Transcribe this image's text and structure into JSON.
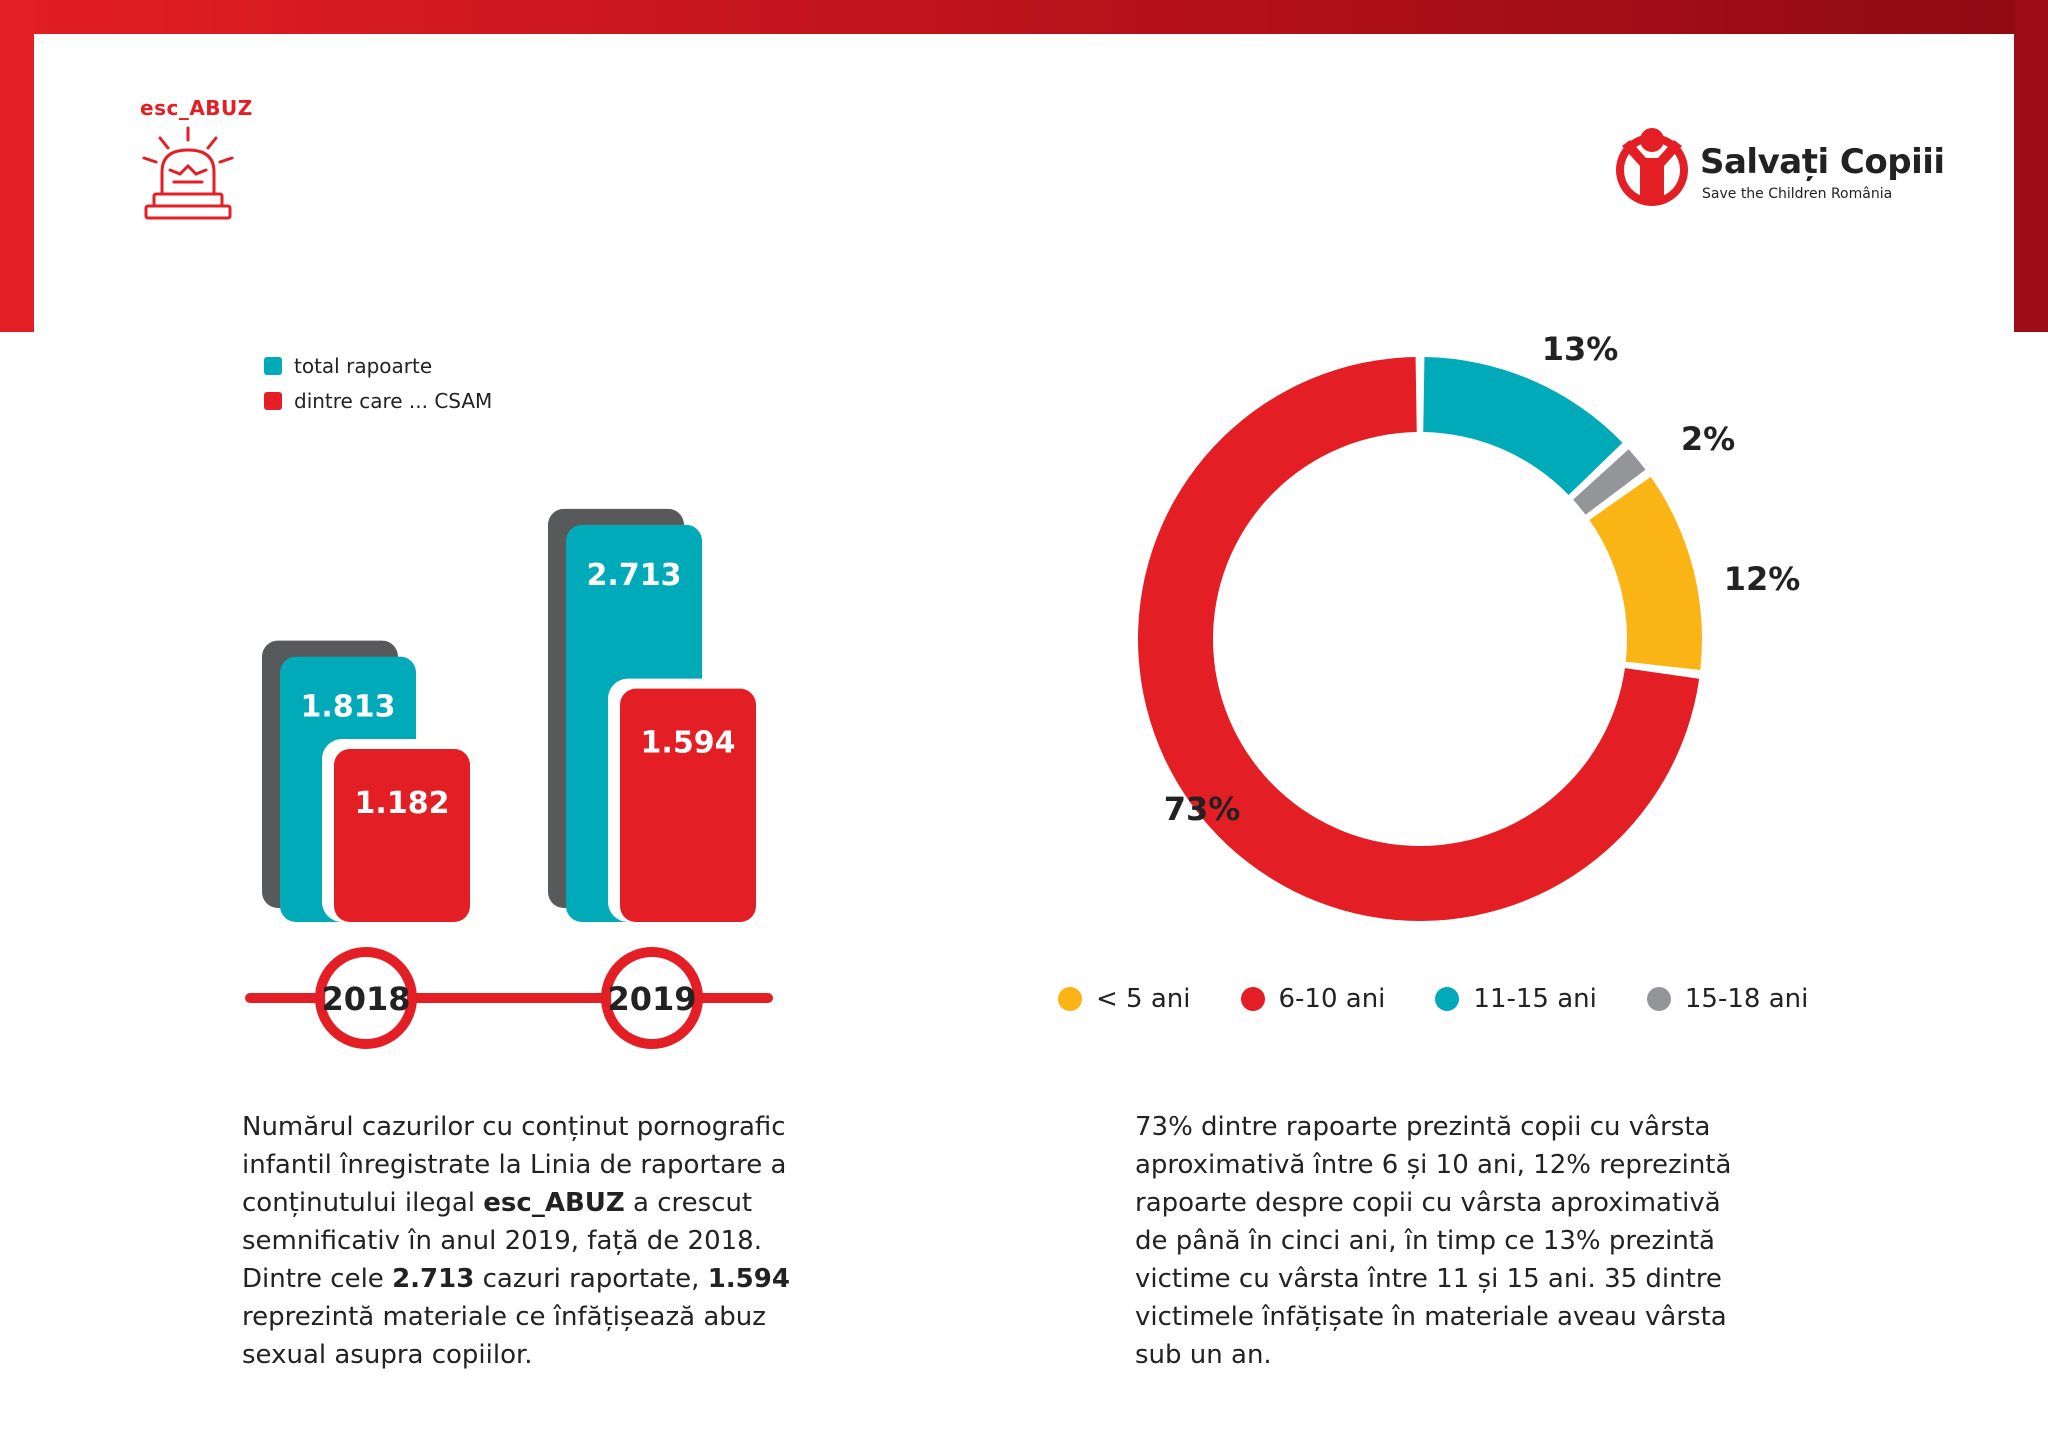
{
  "logos": {
    "esc_abuz": "esc_ABUZ",
    "salvati_copiii_title": "Salvați Copiii",
    "salvati_copiii_subtitle": "Save the Children România"
  },
  "colors": {
    "teal": "#00aab9",
    "red": "#e31e24",
    "dark_gray": "#58595b",
    "yellow": "#fbb416",
    "gray": "#939598"
  },
  "chart_data": [
    {
      "type": "bar",
      "categories": [
        "2018",
        "2019"
      ],
      "series": [
        {
          "name": "total rapoarte",
          "values": [
            1813,
            2713
          ],
          "labels": [
            "1.813",
            "2.713"
          ],
          "color": "#00aab9"
        },
        {
          "name": "dintre care ... CSAM",
          "values": [
            1182,
            1594
          ],
          "labels": [
            "1.182",
            "1.594"
          ],
          "color": "#e31e24"
        }
      ],
      "legend": [
        "total rapoarte",
        "dintre care ... CSAM"
      ],
      "legend_position": "top-left",
      "grid": false
    },
    {
      "type": "pie",
      "style": "donut",
      "categories": [
        "< 5 ani",
        "6-10 ani",
        "11-15 ani",
        "15-18 ani"
      ],
      "values": [
        12,
        73,
        13,
        2
      ],
      "labels": [
        "12%",
        "73%",
        "13%",
        "2%"
      ],
      "colors": [
        "#fbb416",
        "#e31e24",
        "#00aab9",
        "#939598"
      ],
      "legend_position": "bottom"
    }
  ],
  "left_text": {
    "p1": "Numărul cazurilor cu conținut pornografic infantil înregistrate la Linia de raportare a conținutului ilegal ",
    "b1": "esc_ABUZ",
    "p2": " a crescut semnificativ în anul 2019, față de 2018. Dintre cele ",
    "b2": "2.713",
    "p3": " cazuri raportate, ",
    "b3": "1.594",
    "p4": " reprezintă materiale ce înfățișează abuz sexual asupra copiilor."
  },
  "right_text": "73% dintre rapoarte prezintă copii cu vârsta aproximativă între 6 și 10 ani, 12% reprezintă rapoarte despre copii cu vârsta aproximativă de până în cinci ani, în timp ce 13% prezintă victime cu vârsta între 11 și 15 ani. 35 dintre victimele înfățișate în materiale aveau vârsta sub un an."
}
